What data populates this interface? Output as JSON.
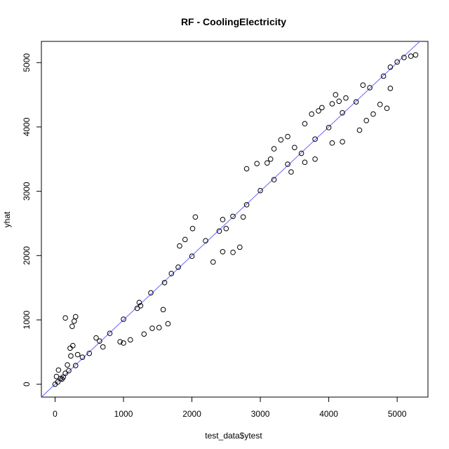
{
  "chart_data": {
    "type": "scatter",
    "title": "RF - CoolingElectricity",
    "xlabel": "test_data$ytest",
    "ylabel": "yhat",
    "xlim": [
      -200,
      5450
    ],
    "ylim": [
      -200,
      5330
    ],
    "x_ticks": [
      0,
      1000,
      2000,
      3000,
      4000,
      5000
    ],
    "y_ticks": [
      0,
      1000,
      2000,
      3000,
      4000,
      5000
    ],
    "x_tick_labels": [
      "0",
      "1000",
      "2000",
      "3000",
      "4000",
      "5000"
    ],
    "y_tick_labels": [
      "0",
      "1000",
      "2000",
      "3000",
      "4000",
      "5000"
    ],
    "grid": false,
    "legend": "none",
    "reference_line": {
      "type": "identity",
      "intercept": 0,
      "slope": 1,
      "color": "#6666ff"
    },
    "marker": {
      "shape": "open-circle",
      "color": "#000000"
    },
    "series": [
      {
        "points": [
          [
            0,
            0
          ],
          [
            40,
            35
          ],
          [
            80,
            90
          ],
          [
            120,
            110
          ],
          [
            200,
            210
          ],
          [
            300,
            290
          ],
          [
            400,
            420
          ],
          [
            500,
            480
          ],
          [
            650,
            670
          ],
          [
            800,
            790
          ],
          [
            1000,
            1010
          ],
          [
            1200,
            1180
          ],
          [
            1400,
            1420
          ],
          [
            1600,
            1580
          ],
          [
            1800,
            1820
          ],
          [
            2000,
            1990
          ],
          [
            2200,
            2230
          ],
          [
            2400,
            2380
          ],
          [
            2600,
            2610
          ],
          [
            2800,
            2790
          ],
          [
            3000,
            3010
          ],
          [
            3200,
            3180
          ],
          [
            3400,
            3420
          ],
          [
            3600,
            3590
          ],
          [
            3800,
            3810
          ],
          [
            4000,
            3990
          ],
          [
            4200,
            4220
          ],
          [
            4400,
            4390
          ],
          [
            4600,
            4610
          ],
          [
            4800,
            4790
          ],
          [
            5000,
            5010
          ],
          [
            5200,
            5100
          ],
          [
            5270,
            5120
          ],
          [
            300,
            1050
          ],
          [
            280,
            980
          ],
          [
            250,
            900
          ],
          [
            260,
            600
          ],
          [
            220,
            560
          ],
          [
            150,
            1030
          ],
          [
            230,
            440
          ],
          [
            330,
            460
          ],
          [
            180,
            300
          ],
          [
            1000,
            640
          ],
          [
            950,
            660
          ],
          [
            1100,
            690
          ],
          [
            1300,
            780
          ],
          [
            1420,
            870
          ],
          [
            1520,
            880
          ],
          [
            1650,
            940
          ],
          [
            1230,
            1270
          ],
          [
            1250,
            1220
          ],
          [
            1580,
            1160
          ],
          [
            2450,
            2060
          ],
          [
            2600,
            2050
          ],
          [
            2700,
            2130
          ],
          [
            1820,
            2150
          ],
          [
            1900,
            2250
          ],
          [
            2010,
            2420
          ],
          [
            2310,
            1900
          ],
          [
            2800,
            3350
          ],
          [
            2950,
            3430
          ],
          [
            3100,
            3440
          ],
          [
            3200,
            3660
          ],
          [
            3300,
            3800
          ],
          [
            3400,
            3850
          ],
          [
            3500,
            3680
          ],
          [
            3650,
            4050
          ],
          [
            3750,
            4200
          ],
          [
            3850,
            4250
          ],
          [
            3900,
            4300
          ],
          [
            4050,
            4360
          ],
          [
            4150,
            4400
          ],
          [
            4250,
            4450
          ],
          [
            3650,
            3450
          ],
          [
            3800,
            3500
          ],
          [
            4050,
            3750
          ],
          [
            4200,
            3770
          ],
          [
            4450,
            3950
          ],
          [
            4550,
            4100
          ],
          [
            4650,
            4200
          ],
          [
            4750,
            4350
          ],
          [
            4850,
            4290
          ],
          [
            4900,
            4600
          ],
          [
            2450,
            2560
          ],
          [
            2500,
            2420
          ],
          [
            1700,
            1720
          ],
          [
            600,
            720
          ],
          [
            700,
            580
          ],
          [
            50,
            220
          ],
          [
            20,
            120
          ],
          [
            100,
            80
          ],
          [
            150,
            170
          ],
          [
            3150,
            3500
          ],
          [
            4100,
            4500
          ],
          [
            4500,
            4650
          ],
          [
            4900,
            4930
          ],
          [
            5100,
            5080
          ],
          [
            3450,
            3300
          ],
          [
            2050,
            2600
          ],
          [
            2750,
            2600
          ]
        ]
      }
    ]
  }
}
